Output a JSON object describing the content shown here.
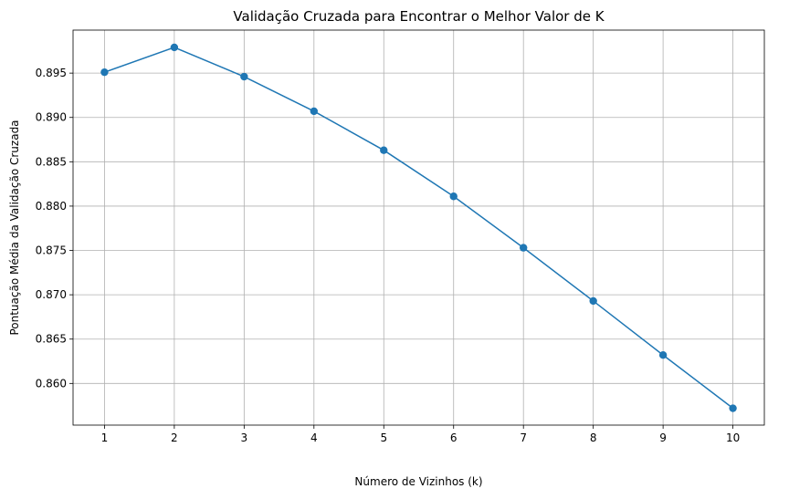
{
  "chart_data": {
    "type": "line",
    "title": "Validação Cruzada para Encontrar o Melhor Valor de K",
    "xlabel": "Número de Vizinhos (k)",
    "ylabel": "Pontuação Média da Validação Cruzada",
    "x": [
      1,
      2,
      3,
      4,
      5,
      6,
      7,
      8,
      9,
      10
    ],
    "series": [
      {
        "values": [
          0.8951,
          0.8979,
          0.8946,
          0.8907,
          0.8863,
          0.8811,
          0.8753,
          0.8693,
          0.8632,
          0.8572
        ],
        "color": "#1f77b4",
        "marker": "circle"
      }
    ],
    "xticks": [
      "1",
      "2",
      "3",
      "4",
      "5",
      "6",
      "7",
      "8",
      "9",
      "10"
    ],
    "yticks": [
      "0.860",
      "0.865",
      "0.870",
      "0.875",
      "0.880",
      "0.885",
      "0.890",
      "0.895"
    ],
    "ytick_values": [
      0.86,
      0.865,
      0.87,
      0.875,
      0.88,
      0.885,
      0.89,
      0.895
    ],
    "xlim": [
      0.55,
      10.45
    ],
    "ylim": [
      0.8553,
      0.89985
    ],
    "grid": true,
    "legend": "none"
  }
}
